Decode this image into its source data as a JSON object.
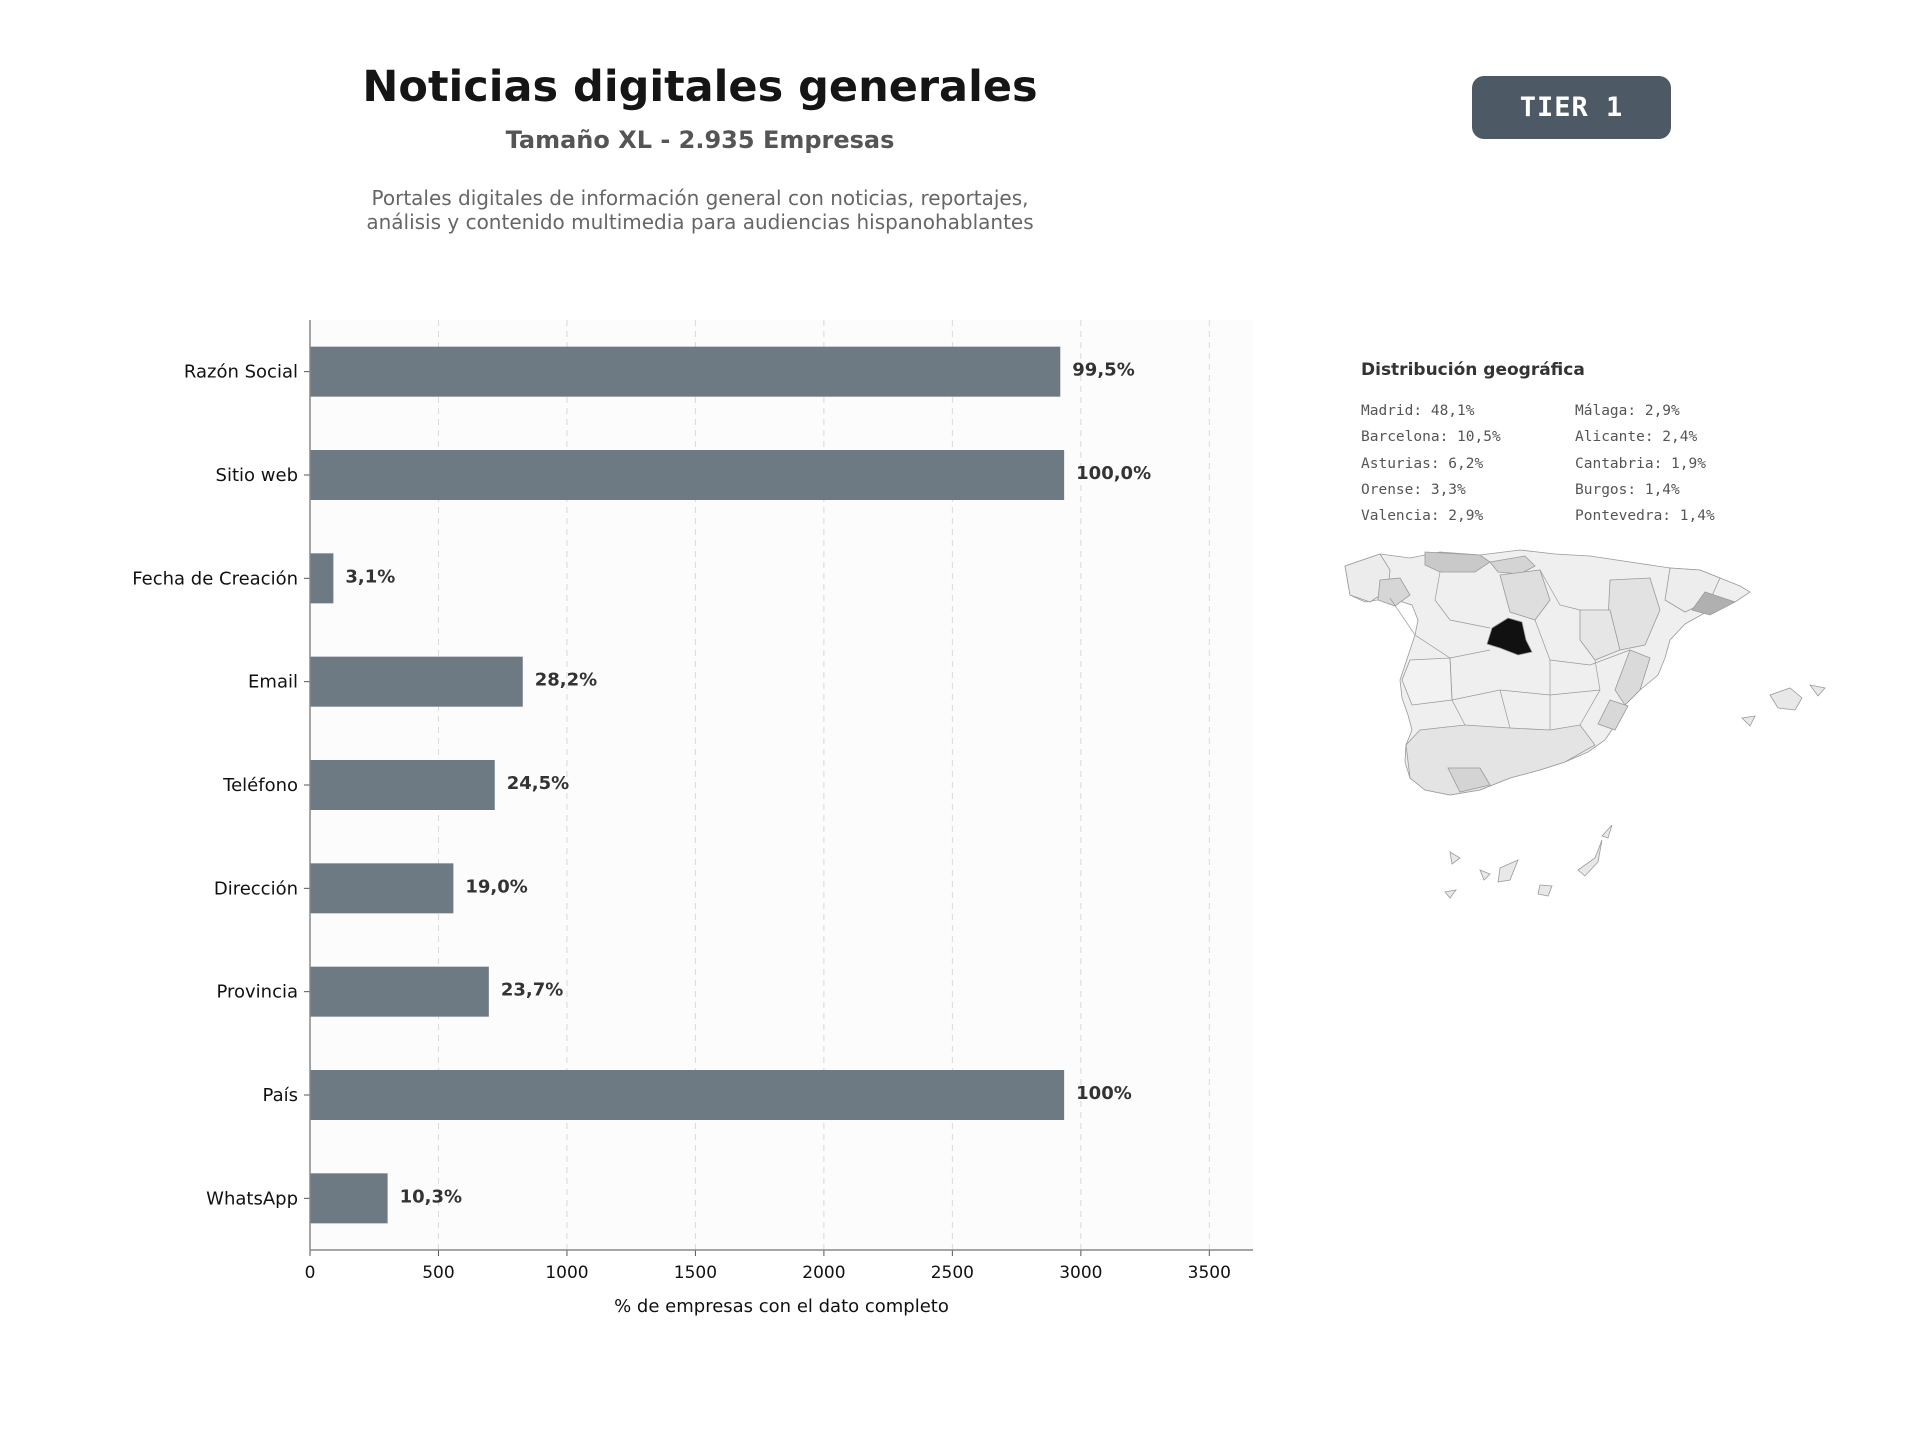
{
  "header": {
    "title": "Noticias digitales generales",
    "subtitle": "Tamaño XL - 2.935 Empresas",
    "description_line1": "Portales digitales de información general con noticias, reportajes,",
    "description_line2": "análisis y contenido multimedia para audiencias hispanohablantes",
    "tier_badge": "TIER 1"
  },
  "chart_data": {
    "type": "bar",
    "orientation": "horizontal",
    "title": "",
    "xlabel": "% de empresas con el dato completo",
    "ylabel": "",
    "xlim": [
      0,
      3670
    ],
    "xticks": [
      0,
      500,
      1000,
      1500,
      2000,
      2500,
      3000,
      3500
    ],
    "grid": "vertical dashed",
    "bar_color": "#6e7a83",
    "categories": [
      "Razón Social",
      "Sitio web",
      "Fecha de Creación",
      "Email",
      "Teléfono",
      "Dirección",
      "Provincia",
      "País",
      "WhatsApp"
    ],
    "values": [
      2920,
      2935,
      91,
      828,
      719,
      558,
      696,
      2935,
      302
    ],
    "labels": [
      "99,5%",
      "100,0%",
      "3,1%",
      "28,2%",
      "24,5%",
      "19,0%",
      "23,7%",
      "100%",
      "10,3%"
    ]
  },
  "geo": {
    "title": "Distribución geográfica",
    "col1": [
      "Madrid: 48,1%",
      "Barcelona: 10,5%",
      "Asturias: 6,2%",
      "Orense: 3,3%",
      "Valencia: 2,9%"
    ],
    "col2": [
      "Málaga: 2,9%",
      "Alicante: 2,4%",
      "Cantabria: 1,9%",
      "Burgos: 1,4%",
      "Pontevedra: 1,4%"
    ]
  }
}
